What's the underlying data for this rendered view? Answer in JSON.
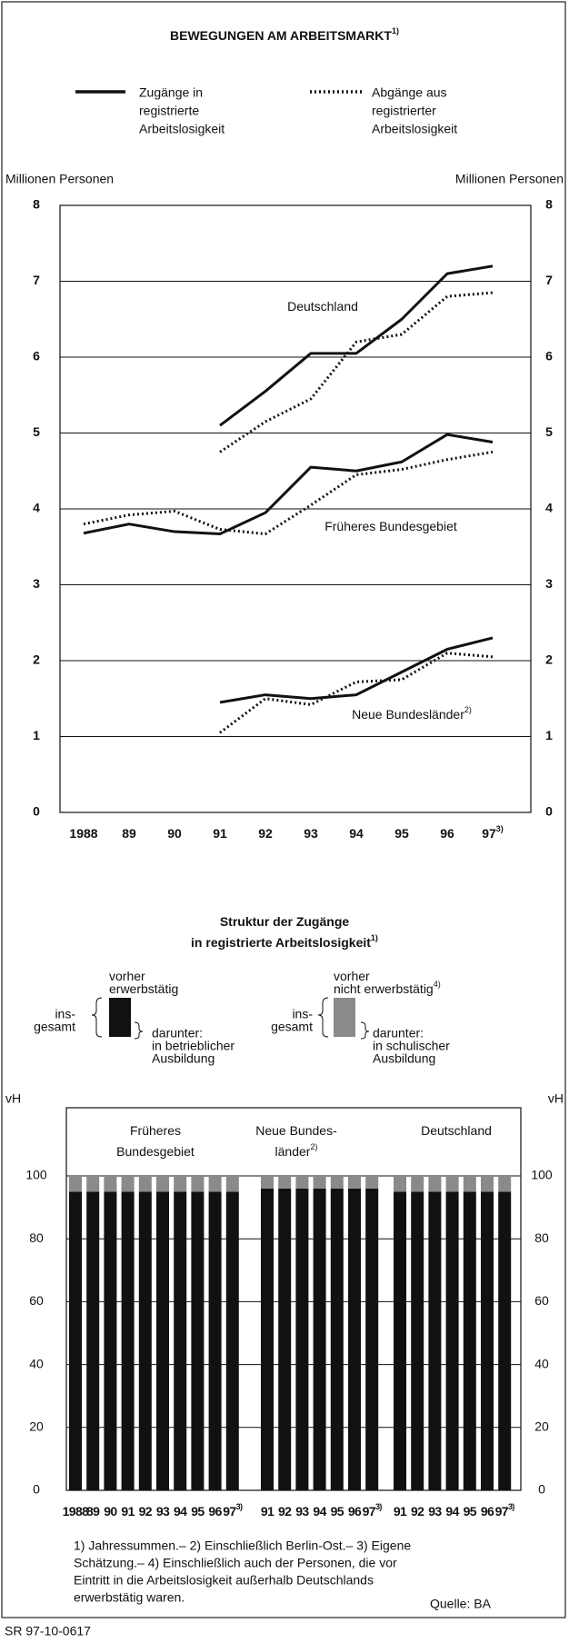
{
  "chart_data": [
    {
      "type": "line",
      "title": "BEWEGUNGEN AM ARBEITSMARKT",
      "title_note": "1)",
      "y_label_left": "Millionen Personen",
      "y_label_right": "Millionen Personen",
      "categories": [
        "1988",
        "89",
        "90",
        "91",
        "92",
        "93",
        "94",
        "95",
        "96",
        "97"
      ],
      "last_category_note": "3)",
      "ylim": [
        0,
        8
      ],
      "yticks": [
        0,
        1,
        2,
        3,
        4,
        5,
        6,
        7,
        8
      ],
      "grid": true,
      "legend": [
        {
          "name_lines": [
            "Zugänge in",
            "registrierte",
            "Arbeitslosigkeit"
          ],
          "style": "solid"
        },
        {
          "name_lines": [
            "Abgänge aus",
            "registrierter",
            "Arbeitslosigkeit"
          ],
          "style": "dotted"
        }
      ],
      "regions": [
        {
          "name": "Deutschland",
          "series": [
            {
              "style": "solid",
              "color": "#111111",
              "values": [
                null,
                null,
                null,
                5.1,
                5.55,
                6.05,
                6.05,
                6.5,
                7.1,
                7.2
              ]
            },
            {
              "style": "dotted",
              "color": "#111111",
              "values": [
                null,
                null,
                null,
                4.75,
                5.15,
                5.45,
                6.2,
                6.3,
                6.8,
                6.85
              ]
            }
          ]
        },
        {
          "name": "Früheres Bundesgebiet",
          "series": [
            {
              "style": "solid",
              "color": "#111111",
              "values": [
                3.68,
                3.8,
                3.7,
                3.67,
                3.95,
                4.55,
                4.5,
                4.62,
                4.98,
                4.88
              ]
            },
            {
              "style": "dotted",
              "color": "#111111",
              "values": [
                3.8,
                3.92,
                3.97,
                3.73,
                3.67,
                4.05,
                4.45,
                4.52,
                4.65,
                4.75
              ]
            }
          ]
        },
        {
          "name": "Neue Bundesländer",
          "note": "2)",
          "series": [
            {
              "style": "solid",
              "color": "#111111",
              "values": [
                null,
                null,
                null,
                1.45,
                1.55,
                1.5,
                1.55,
                1.85,
                2.15,
                2.3
              ]
            },
            {
              "style": "dotted",
              "color": "#111111",
              "values": [
                null,
                null,
                null,
                1.05,
                1.5,
                1.42,
                1.72,
                1.75,
                2.1,
                2.05
              ]
            }
          ]
        }
      ]
    },
    {
      "type": "stacked_bar",
      "title_lines": [
        "Struktur der Zugänge",
        "in registrierte Arbeitslosigkeit"
      ],
      "title_note": "1)",
      "y_label_left": "vH",
      "y_label_right": "vH",
      "ylim": [
        0,
        100
      ],
      "yticks": [
        0,
        20,
        40,
        60,
        80,
        100
      ],
      "grid": true,
      "legend": [
        {
          "name_lines": [
            "vorher",
            "erwerbstätig"
          ],
          "total_lines": [
            "ins-",
            "gesamt"
          ],
          "sub_lines": [
            "darunter:",
            "in betrieblicher",
            "Ausbildung"
          ],
          "color": "#111111"
        },
        {
          "name_lines": [
            "vorher",
            "nicht erwerbstätig"
          ],
          "note": "4)",
          "total_lines": [
            "ins-",
            "gesamt"
          ],
          "sub_lines": [
            "darunter:",
            "in schulischer",
            "Ausbildung"
          ],
          "color": "#8a8a8a"
        }
      ],
      "groups": [
        {
          "title_lines": [
            "Früheres",
            "Bundesgebiet"
          ],
          "categories": [
            "1988",
            "89",
            "90",
            "91",
            "92",
            "93",
            "94",
            "95",
            "96",
            "97"
          ],
          "last_category_note": "3)",
          "series": [
            {
              "values": [
                95,
                95,
                95,
                95,
                95,
                95,
                95,
                95,
                95,
                95
              ]
            },
            {
              "values": [
                5,
                5,
                5,
                5,
                5,
                5,
                5,
                5,
                5,
                5
              ]
            }
          ]
        },
        {
          "title_lines": [
            "Neue Bundes-",
            "länder"
          ],
          "title_note": "2)",
          "categories": [
            "91",
            "92",
            "93",
            "94",
            "95",
            "96",
            "97"
          ],
          "last_category_note": "3)",
          "series": [
            {
              "values": [
                96,
                96,
                96,
                96,
                96,
                96,
                96
              ]
            },
            {
              "values": [
                4,
                4,
                4,
                4,
                4,
                4,
                4
              ]
            }
          ]
        },
        {
          "title_lines": [
            "Deutschland"
          ],
          "categories": [
            "91",
            "92",
            "93",
            "94",
            "95",
            "96",
            "97"
          ],
          "last_category_note": "3)",
          "series": [
            {
              "values": [
                95,
                95,
                95,
                95,
                95,
                95,
                95
              ]
            },
            {
              "values": [
                5,
                5,
                5,
                5,
                5,
                5,
                5
              ]
            }
          ]
        }
      ]
    }
  ],
  "footnotes": [
    "1) Jahressummen.– 2) Einschließlich Berlin-Ost.– 3) Eigene",
    "Schätzung.– 4) Einschließlich auch der Personen, die vor",
    "Eintritt in die Arbeitslosigkeit außerhalb Deutschlands",
    "erwerbstätig waren."
  ],
  "source": "Quelle: BA",
  "code": "SR 97-10-0617"
}
